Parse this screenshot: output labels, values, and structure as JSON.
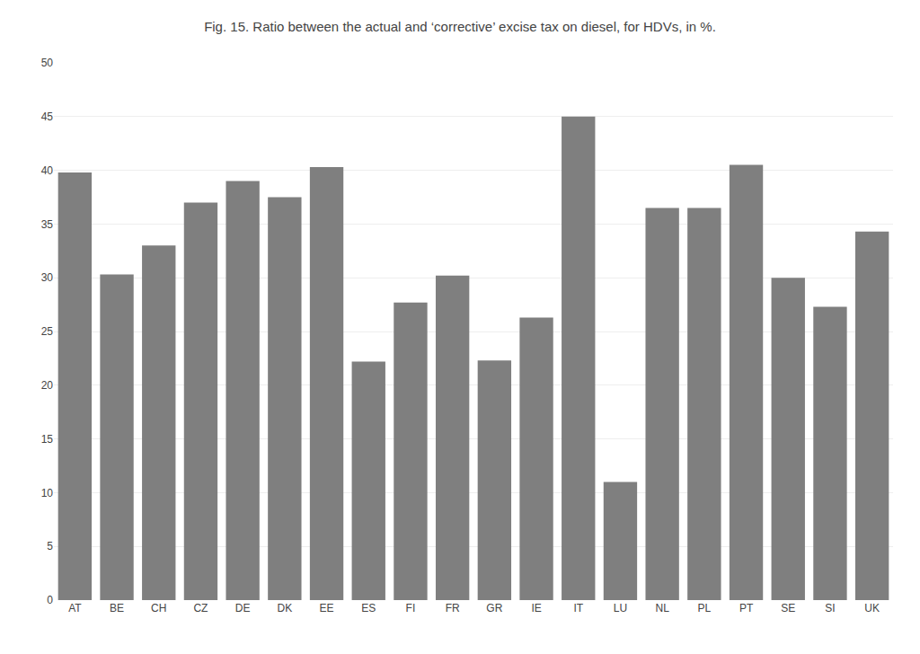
{
  "chart_data": {
    "type": "bar",
    "title": "Fig. 15. Ratio between the actual and ‘corrective’ excise tax on diesel, for HDVs, in %.",
    "categories": [
      "AT",
      "BE",
      "CH",
      "CZ",
      "DE",
      "DK",
      "EE",
      "ES",
      "FI",
      "FR",
      "GR",
      "IE",
      "IT",
      "LU",
      "NL",
      "PL",
      "PT",
      "SE",
      "SI",
      "UK"
    ],
    "values": [
      39.8,
      30.3,
      33.0,
      37.0,
      39.0,
      37.5,
      40.3,
      22.2,
      27.7,
      30.2,
      22.3,
      26.3,
      45.0,
      11.0,
      36.5,
      36.5,
      40.5,
      30.0,
      27.3,
      34.3
    ],
    "color": "#7f7f7f",
    "ylim": [
      0,
      50
    ],
    "yticks": [
      0,
      5,
      10,
      15,
      20,
      25,
      30,
      35,
      40,
      45,
      50
    ],
    "grid": true
  }
}
